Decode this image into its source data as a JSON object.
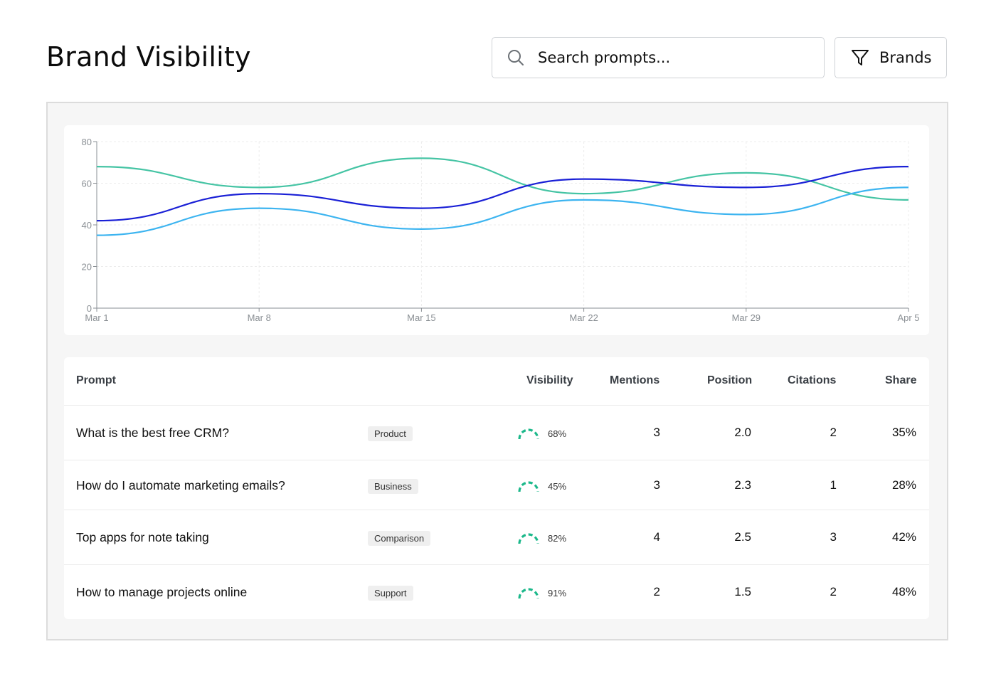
{
  "header": {
    "title": "Brand Visibility",
    "search_placeholder": "Search prompts...",
    "brands_label": "Brands"
  },
  "chart_data": {
    "type": "line",
    "x": [
      "Mar 1",
      "Mar 8",
      "Mar 15",
      "Mar 22",
      "Mar 29",
      "Apr 5"
    ],
    "xlabel": "",
    "ylabel": "",
    "ylim": [
      0,
      80
    ],
    "yticks": [
      0,
      20,
      40,
      60,
      80
    ],
    "grid": true,
    "series": [
      {
        "color": "#45c4a4",
        "values": [
          68,
          58,
          72,
          55,
          65,
          52
        ]
      },
      {
        "color": "#1a20d6",
        "values": [
          42,
          55,
          48,
          62,
          58,
          68
        ]
      },
      {
        "color": "#3cb4f0",
        "values": [
          35,
          48,
          38,
          52,
          45,
          58
        ]
      }
    ]
  },
  "table": {
    "headers": {
      "prompt": "Prompt",
      "visibility": "Visibility",
      "mentions": "Mentions",
      "position": "Position",
      "citations": "Citations",
      "share": "Share"
    },
    "rows": [
      {
        "prompt": "What is the best free CRM?",
        "tag": "Product",
        "visibility": "68%",
        "mentions": "3",
        "position": "2.0",
        "citations": "2",
        "share": "35%"
      },
      {
        "prompt": "How do I automate marketing emails?",
        "tag": "Business",
        "visibility": "45%",
        "mentions": "3",
        "position": "2.3",
        "citations": "1",
        "share": "28%"
      },
      {
        "prompt": "Top apps for note taking",
        "tag": "Comparison",
        "visibility": "82%",
        "mentions": "4",
        "position": "2.5",
        "citations": "3",
        "share": "42%"
      },
      {
        "prompt": "How to manage projects online",
        "tag": "Support",
        "visibility": "91%",
        "mentions": "2",
        "position": "1.5",
        "citations": "2",
        "share": "48%"
      }
    ],
    "gauge_color": "#1bb88a"
  }
}
